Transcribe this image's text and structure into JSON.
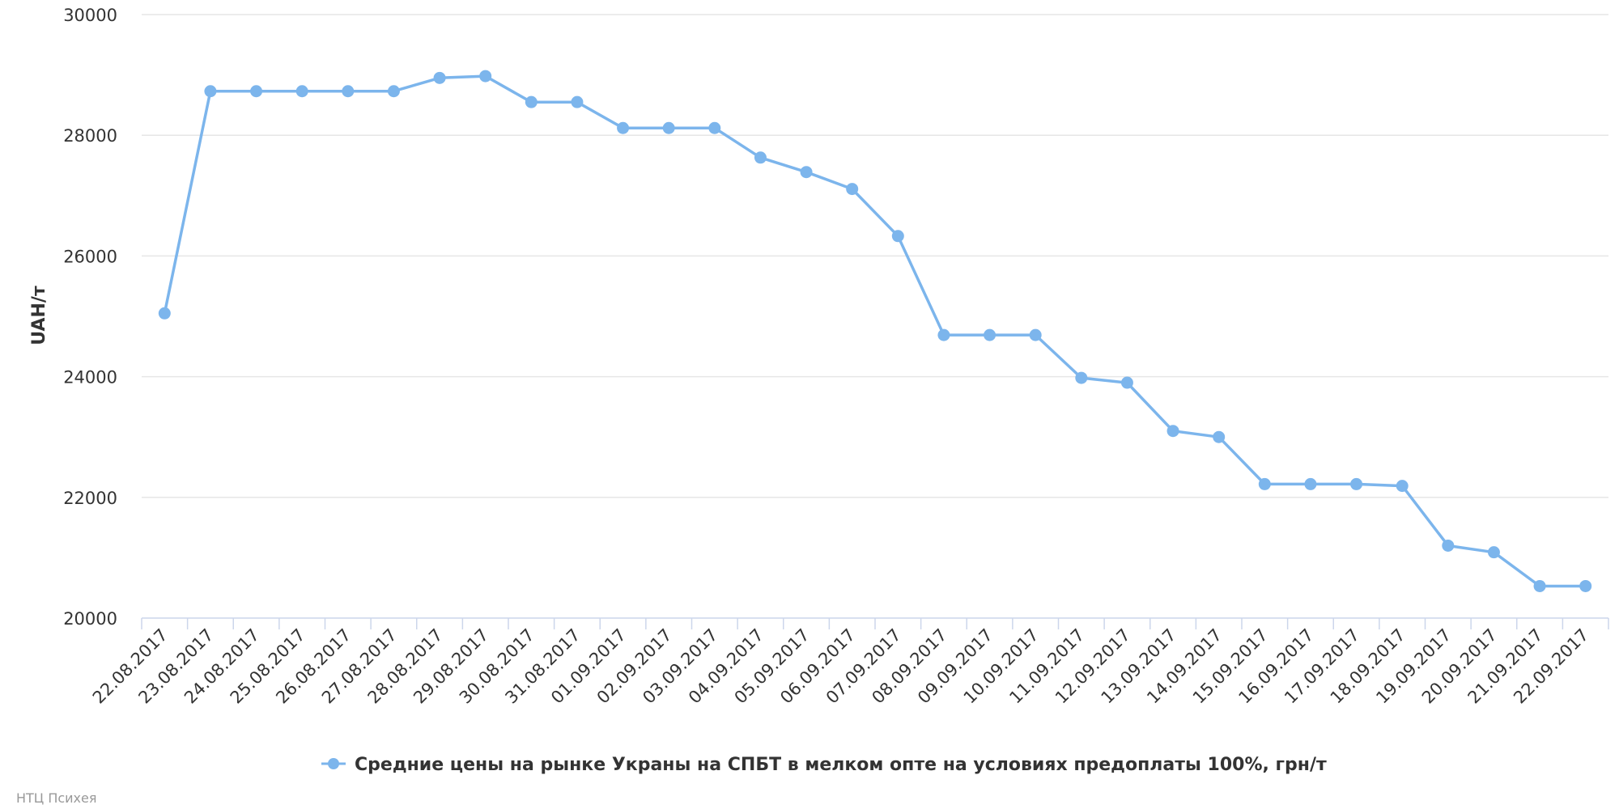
{
  "chart_data": {
    "type": "line",
    "title": "",
    "xlabel": "",
    "ylabel": "UAH/т",
    "ylim": [
      20000,
      30000
    ],
    "y_ticks": [
      "20000",
      "22000",
      "24000",
      "26000",
      "28000",
      "30000"
    ],
    "grid": true,
    "legend_position": "bottom-center",
    "categories": [
      "22.08.2017",
      "23.08.2017",
      "24.08.2017",
      "25.08.2017",
      "26.08.2017",
      "27.08.2017",
      "28.08.2017",
      "29.08.2017",
      "30.08.2017",
      "31.08.2017",
      "01.09.2017",
      "02.09.2017",
      "03.09.2017",
      "04.09.2017",
      "05.09.2017",
      "06.09.2017",
      "07.09.2017",
      "08.09.2017",
      "09.09.2017",
      "10.09.2017",
      "11.09.2017",
      "12.09.2017",
      "13.09.2017",
      "14.09.2017",
      "15.09.2017",
      "16.09.2017",
      "17.09.2017",
      "18.09.2017",
      "19.09.2017",
      "20.09.2017",
      "21.09.2017",
      "22.09.2017"
    ],
    "series": [
      {
        "name": "Средние цены на рынке Украны на СПБТ в мелком опте на условиях предоплаты 100%, грн/т",
        "color": "#7cb5ec",
        "values": [
          25050,
          28730,
          28730,
          28730,
          28730,
          28730,
          28950,
          28980,
          28550,
          28550,
          28120,
          28120,
          28120,
          27630,
          27390,
          27110,
          26330,
          24690,
          24690,
          24690,
          23980,
          23900,
          23100,
          23000,
          22220,
          22220,
          22220,
          22190,
          21200,
          21090,
          20530,
          20530
        ]
      }
    ]
  },
  "credits": "НТЦ Психея"
}
